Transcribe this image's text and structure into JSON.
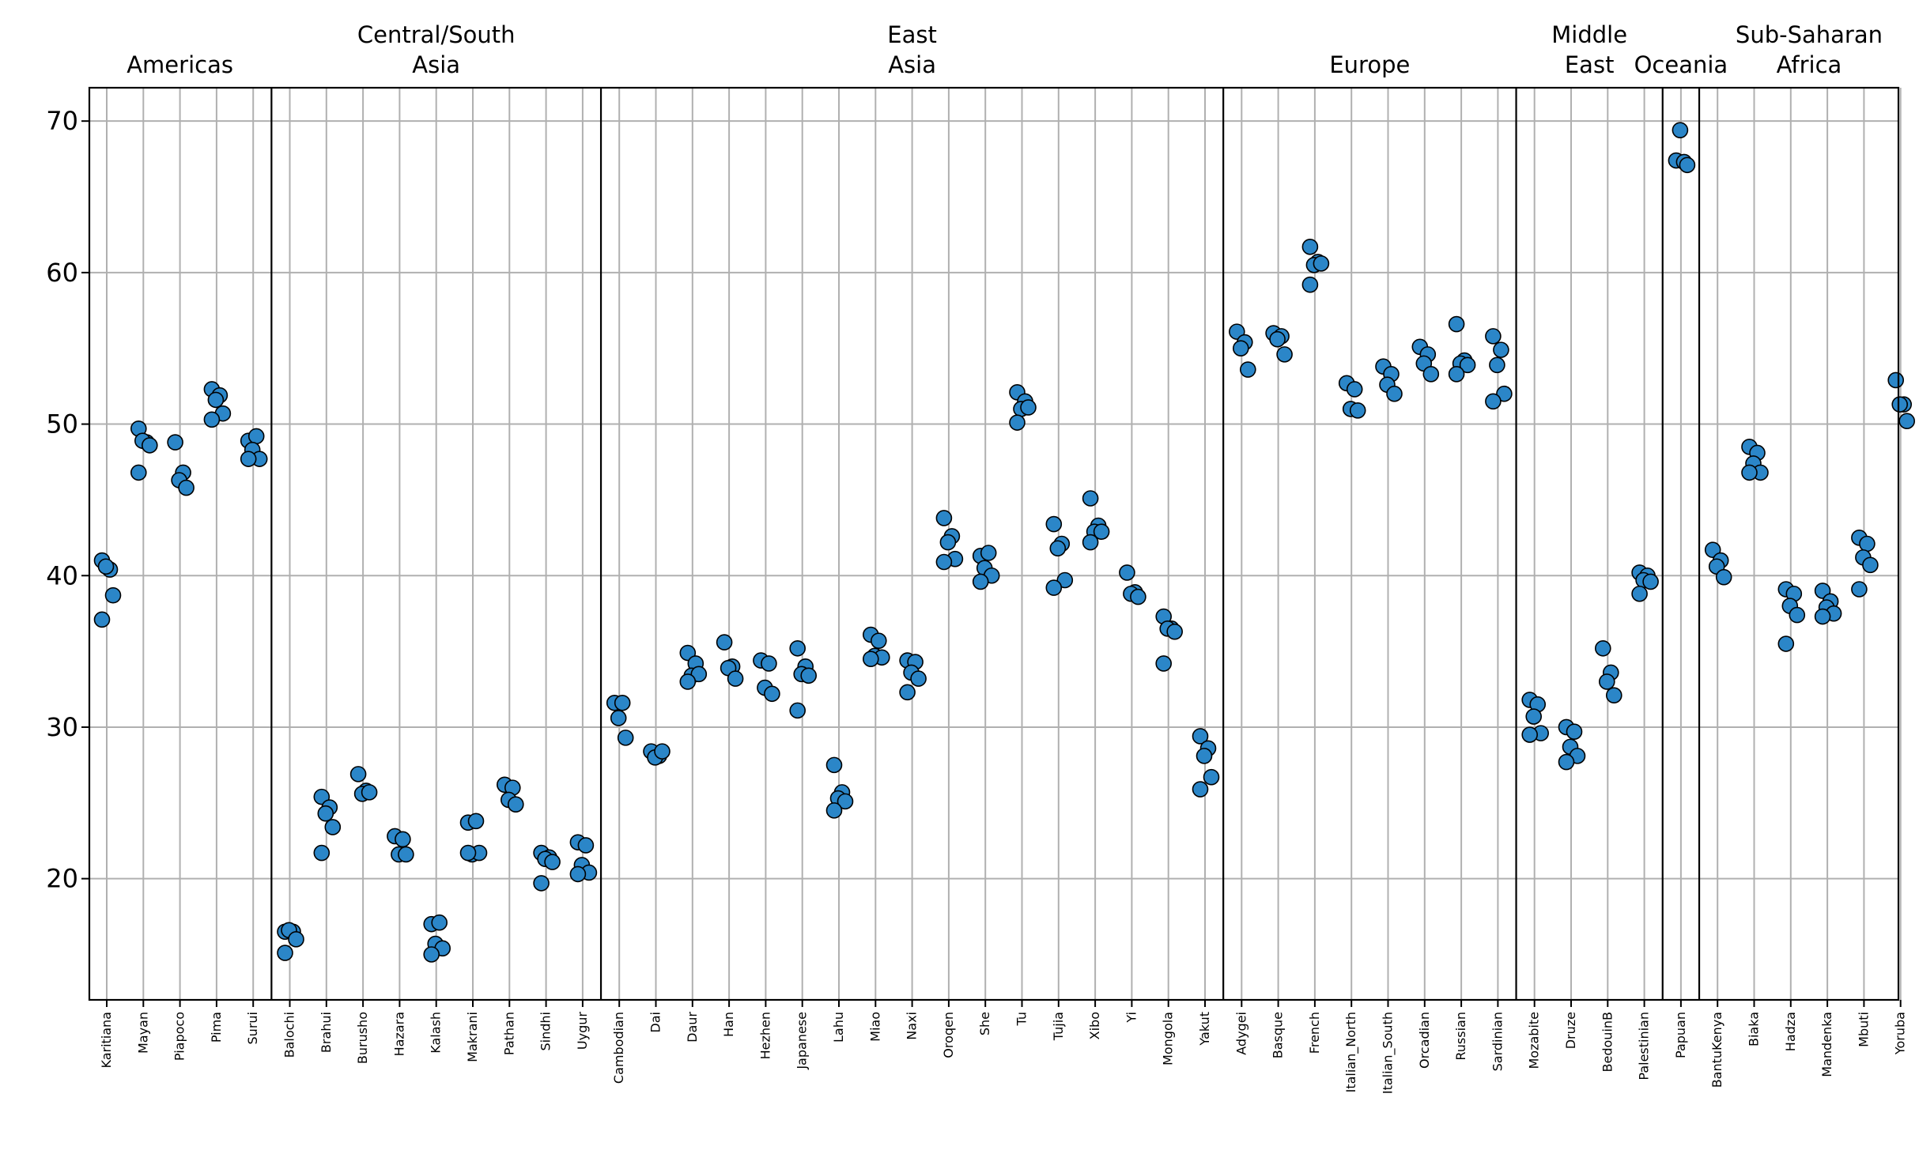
{
  "chart_data": {
    "type": "scatter",
    "ylim": [
      12.0,
      72.2
    ],
    "yticks": [
      20,
      30,
      40,
      50,
      60,
      70
    ],
    "grid": true,
    "marker_color": "#2b86c8",
    "groups": [
      {
        "name": "Americas",
        "populations": [
          "Karitiana",
          "Mayan",
          "Piapoco",
          "Pima",
          "Surui"
        ]
      },
      {
        "name": "Central/South\nAsia",
        "populations": [
          "Balochi",
          "Brahui",
          "Burusho",
          "Hazara",
          "Kalash",
          "Makrani",
          "Pathan",
          "Sindhi",
          "Uygur"
        ]
      },
      {
        "name": "East\nAsia",
        "populations": [
          "Cambodian",
          "Dai",
          "Daur",
          "Han",
          "Hezhen",
          "Japanese",
          "Lahu",
          "Miao",
          "Naxi",
          "Oroqen",
          "She",
          "Tu",
          "Tujia",
          "Xibo",
          "Yi",
          "Mongola",
          "Yakut"
        ]
      },
      {
        "name": "Europe",
        "populations": [
          "Adygei",
          "Basque",
          "French",
          "Italian_North",
          "Italian_South",
          "Orcadian",
          "Russian",
          "Sardinian"
        ]
      },
      {
        "name": "Middle\nEast",
        "populations": [
          "Mozabite",
          "Druze",
          "BedouinB",
          "Palestinian"
        ]
      },
      {
        "name": "Oceania",
        "populations": [
          "Papuan"
        ]
      },
      {
        "name": "Sub-Saharan\nAfrica",
        "populations": [
          "BantuKenya",
          "Biaka",
          "Hadza",
          "Mandenka",
          "Mbuti",
          "Yoruba"
        ]
      }
    ],
    "points": [
      {
        "population": "Karitiana",
        "values": [
          41.0,
          40.4,
          40.6,
          38.7,
          37.1
        ]
      },
      {
        "population": "Mayan",
        "values": [
          49.7,
          48.8,
          48.9,
          48.6,
          46.8
        ]
      },
      {
        "population": "Piapoco",
        "values": [
          48.8,
          46.8,
          46.3,
          45.8
        ]
      },
      {
        "population": "Pima",
        "values": [
          52.3,
          51.9,
          51.6,
          50.7,
          50.3
        ]
      },
      {
        "population": "Surui",
        "values": [
          48.9,
          49.2,
          48.3,
          47.7,
          47.7
        ]
      },
      {
        "population": "Balochi",
        "values": [
          16.5,
          16.5,
          16.6,
          16.0,
          15.1
        ]
      },
      {
        "population": "Brahui",
        "values": [
          25.4,
          24.7,
          24.3,
          23.4,
          21.7
        ]
      },
      {
        "population": "Burusho",
        "values": [
          26.9,
          25.8,
          25.6,
          25.7
        ]
      },
      {
        "population": "Hazara",
        "values": [
          22.8,
          22.6,
          21.6,
          21.6
        ]
      },
      {
        "population": "Kalash",
        "values": [
          17.0,
          17.1,
          15.7,
          15.4,
          15.0
        ]
      },
      {
        "population": "Makrani",
        "values": [
          23.7,
          23.8,
          21.6,
          21.7,
          21.7
        ]
      },
      {
        "population": "Pathan",
        "values": [
          26.2,
          26.0,
          25.2,
          24.9
        ]
      },
      {
        "population": "Sindhi",
        "values": [
          21.7,
          21.4,
          21.3,
          21.1,
          19.7
        ]
      },
      {
        "population": "Uygur",
        "values": [
          22.4,
          22.2,
          20.9,
          20.4,
          20.3
        ]
      },
      {
        "population": "Cambodian",
        "values": [
          31.6,
          31.6,
          30.6,
          29.3
        ]
      },
      {
        "population": "Dai",
        "values": [
          28.4,
          28.1,
          28.0,
          28.4
        ]
      },
      {
        "population": "Daur",
        "values": [
          34.9,
          34.2,
          33.4,
          33.5,
          33.0
        ]
      },
      {
        "population": "Han",
        "values": [
          35.6,
          34.0,
          33.9,
          33.2
        ]
      },
      {
        "population": "Hezhen",
        "values": [
          34.4,
          34.2,
          32.6,
          32.2
        ]
      },
      {
        "population": "Japanese",
        "values": [
          35.2,
          34.0,
          33.5,
          33.4,
          31.1
        ]
      },
      {
        "population": "Lahu",
        "values": [
          27.5,
          25.7,
          25.3,
          25.1,
          24.5
        ]
      },
      {
        "population": "Miao",
        "values": [
          36.1,
          35.7,
          34.7,
          34.6,
          34.5
        ]
      },
      {
        "population": "Naxi",
        "values": [
          34.4,
          34.3,
          33.6,
          33.2,
          32.3
        ]
      },
      {
        "population": "Oroqen",
        "values": [
          43.8,
          42.6,
          42.2,
          41.1,
          40.9
        ]
      },
      {
        "population": "She",
        "values": [
          41.3,
          41.5,
          40.5,
          40.0,
          39.6
        ]
      },
      {
        "population": "Tu",
        "values": [
          52.1,
          51.5,
          51.0,
          51.1,
          50.1
        ]
      },
      {
        "population": "Tujia",
        "values": [
          43.4,
          42.1,
          41.8,
          39.7,
          39.2
        ]
      },
      {
        "population": "Xibo",
        "values": [
          45.1,
          43.3,
          42.9,
          42.9,
          42.2
        ]
      },
      {
        "population": "Yi",
        "values": [
          40.2,
          38.9,
          38.8,
          38.6
        ]
      },
      {
        "population": "Mongola",
        "values": [
          37.3,
          36.5,
          36.5,
          36.3,
          34.2
        ]
      },
      {
        "population": "Yakut",
        "values": [
          29.4,
          28.6,
          28.1,
          26.7,
          25.9
        ]
      },
      {
        "population": "Adygei",
        "values": [
          56.1,
          55.4,
          55.0,
          53.6
        ]
      },
      {
        "population": "Basque",
        "values": [
          56.0,
          55.8,
          55.6,
          54.6
        ]
      },
      {
        "population": "French",
        "values": [
          61.7,
          60.7,
          60.5,
          60.6,
          59.2
        ]
      },
      {
        "population": "Italian_North",
        "values": [
          52.7,
          52.3,
          51.0,
          50.9
        ]
      },
      {
        "population": "Italian_South",
        "values": [
          53.8,
          53.3,
          52.6,
          52.0
        ]
      },
      {
        "population": "Orcadian",
        "values": [
          55.1,
          54.6,
          54.0,
          53.3
        ]
      },
      {
        "population": "Russian",
        "values": [
          56.6,
          54.2,
          54.0,
          53.9,
          53.3
        ]
      },
      {
        "population": "Sardinian",
        "values": [
          55.8,
          54.9,
          53.9,
          52.0,
          51.5
        ]
      },
      {
        "population": "Mozabite",
        "values": [
          31.8,
          31.5,
          30.7,
          29.6,
          29.5
        ]
      },
      {
        "population": "Druze",
        "values": [
          30.0,
          29.7,
          28.7,
          28.1,
          27.7
        ]
      },
      {
        "population": "BedouinB",
        "values": [
          35.2,
          33.6,
          33.0,
          32.1
        ]
      },
      {
        "population": "Palestinian",
        "values": [
          40.2,
          40.0,
          39.7,
          39.6,
          38.8
        ]
      },
      {
        "population": "Papuan",
        "values": [
          67.4,
          67.3,
          69.4,
          67.1
        ]
      },
      {
        "population": "BantuKenya",
        "values": [
          41.7,
          41.0,
          40.6,
          39.9
        ]
      },
      {
        "population": "Biaka",
        "values": [
          48.5,
          48.1,
          47.4,
          46.8,
          46.8
        ]
      },
      {
        "population": "Hadza",
        "values": [
          39.1,
          38.8,
          38.0,
          37.4,
          35.5
        ]
      },
      {
        "population": "Mandenka",
        "values": [
          39.0,
          38.3,
          37.9,
          37.5,
          37.3
        ]
      },
      {
        "population": "Mbuti",
        "values": [
          42.5,
          42.1,
          41.2,
          40.7,
          39.1
        ]
      },
      {
        "population": "Yoruba",
        "values": [
          52.9,
          51.3,
          51.3,
          50.2
        ]
      }
    ]
  }
}
